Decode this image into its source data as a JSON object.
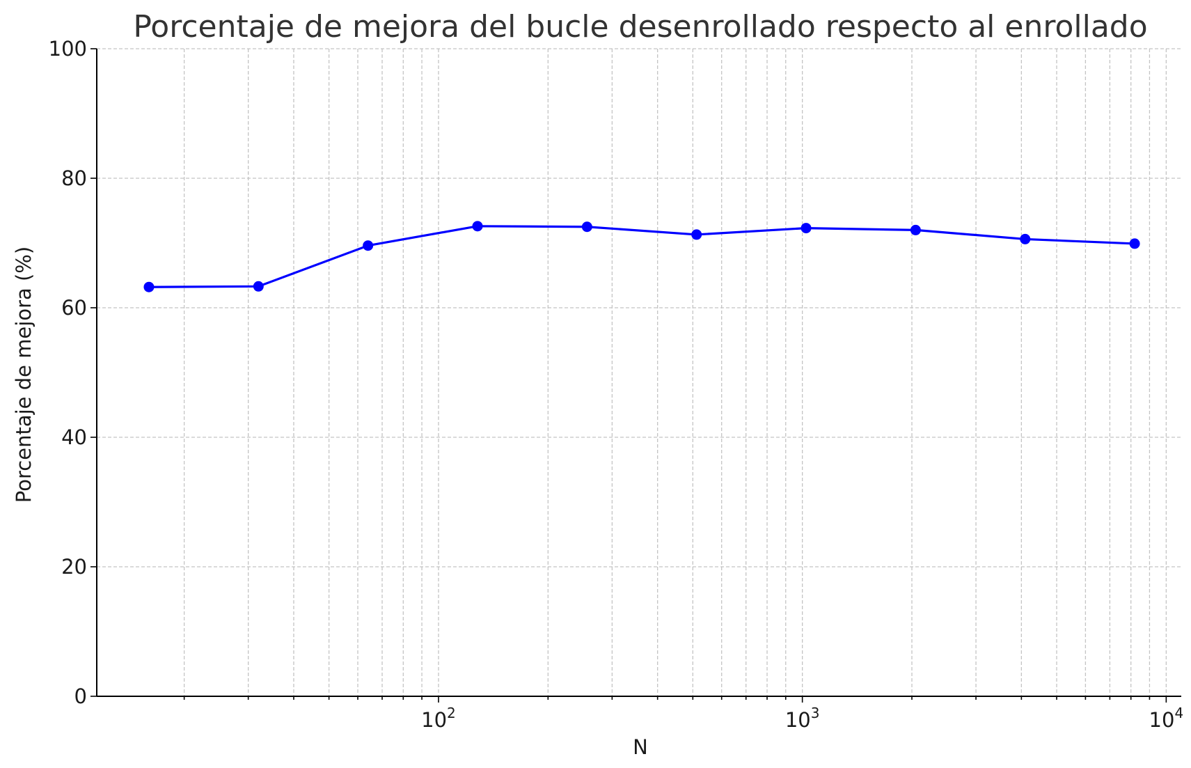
{
  "chart_data": {
    "type": "line",
    "title": "Porcentaje de mejora del bucle desenrollado respecto al enrollado",
    "xlabel": "N",
    "ylabel": "Porcentaje de mejora (%)",
    "x_scale": "log",
    "xlim": [
      11.5,
      11000
    ],
    "ylim": [
      0,
      100
    ],
    "x_ticks": [
      {
        "value": 100,
        "base": "10",
        "exp": "2"
      },
      {
        "value": 1000,
        "base": "10",
        "exp": "3"
      },
      {
        "value": 10000,
        "base": "10",
        "exp": "4"
      }
    ],
    "y_ticks": [
      0,
      20,
      40,
      60,
      80,
      100
    ],
    "grid": true,
    "legend": "none",
    "series": [
      {
        "color": "#0000ff",
        "marker": "circle",
        "x": [
          16,
          32,
          64,
          128,
          256,
          512,
          1024,
          2048,
          4096,
          8192
        ],
        "y": [
          63.2,
          63.3,
          69.6,
          72.6,
          72.5,
          71.3,
          72.3,
          72.0,
          70.6,
          69.9
        ]
      }
    ]
  }
}
